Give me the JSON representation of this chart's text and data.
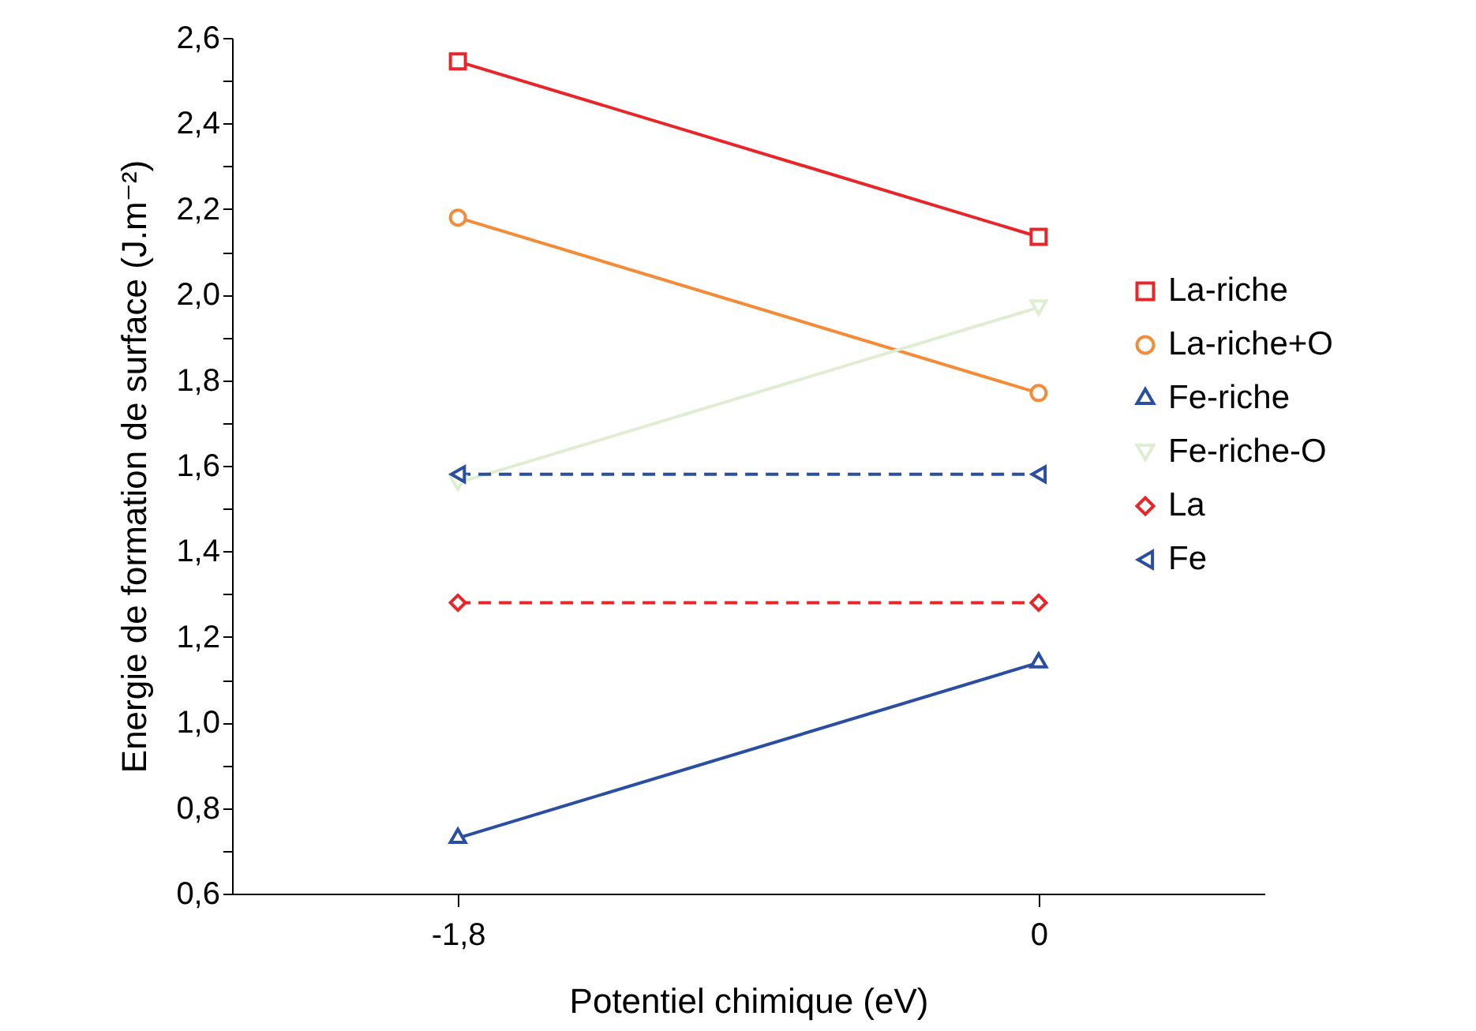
{
  "chart_data": {
    "type": "line",
    "xlabel": "Potentiel chimique (eV)",
    "ylabel": "Energie de formation de surface (J.m⁻²)",
    "x": [
      -1.8,
      0
    ],
    "series": [
      {
        "name": "La-riche",
        "color": "#e8262a",
        "values": [
          2.545,
          2.135
        ],
        "marker": "square",
        "line_style": "solid"
      },
      {
        "name": "La-riche+O",
        "color": "#f28c38",
        "values": [
          2.18,
          1.77
        ],
        "marker": "circle",
        "line_style": "solid"
      },
      {
        "name": "Fe-riche",
        "color": "#2b4fa0",
        "values": [
          0.73,
          1.14
        ],
        "marker": "triangle",
        "line_style": "solid"
      },
      {
        "name": "Fe-riche-O",
        "color": "#dfeed3",
        "values": [
          1.56,
          1.97
        ],
        "marker": "triangle-down",
        "line_style": "solid"
      },
      {
        "name": "La",
        "color": "#e8262a",
        "values": [
          1.28,
          1.28
        ],
        "marker": "diamond",
        "line_style": "dashed"
      },
      {
        "name": "Fe",
        "color": "#2b4fa0",
        "values": [
          1.58,
          1.58
        ],
        "marker": "triangle-left",
        "line_style": "dashed"
      }
    ],
    "xlim": [
      -2.5,
      0.7
    ],
    "xticks": [
      {
        "value": -1.8,
        "label": "-1,8"
      },
      0
    ],
    "ylim": [
      0.6,
      2.6
    ],
    "yticks": [
      {
        "value": 0.6,
        "label": "0,6"
      },
      {
        "value": 0.7,
        "label": null
      },
      {
        "value": 0.8,
        "label": "0,8"
      },
      {
        "value": 0.9,
        "label": null
      },
      {
        "value": 1.0,
        "label": "1,0"
      },
      {
        "value": 1.1,
        "label": null
      },
      {
        "value": 1.2,
        "label": "1,2"
      },
      {
        "value": 1.3,
        "label": null
      },
      {
        "value": 1.4,
        "label": "1,4"
      },
      {
        "value": 1.5,
        "label": null
      },
      {
        "value": 1.6,
        "label": "1,6"
      },
      {
        "value": 1.7,
        "label": null
      },
      {
        "value": 1.8,
        "label": "1,8"
      },
      {
        "value": 1.9,
        "label": null
      },
      {
        "value": 2.0,
        "label": "2,0"
      },
      {
        "value": 2.1,
        "label": null
      },
      {
        "value": 2.2,
        "label": "2,2"
      },
      {
        "value": 2.3,
        "label": null
      },
      {
        "value": 2.4,
        "label": "2,4"
      },
      {
        "value": 2.5,
        "label": null
      },
      {
        "value": 2.6,
        "label": "2,6"
      }
    ],
    "grid": false,
    "legend": "right"
  }
}
